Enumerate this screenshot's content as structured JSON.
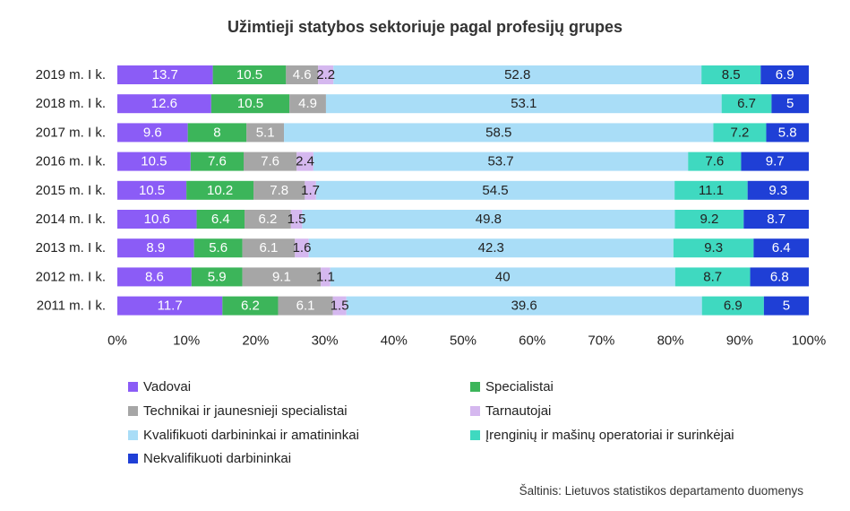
{
  "chart_data": {
    "type": "bar",
    "orientation": "horizontal",
    "stacked": "100%",
    "title": "Užimtieji statybos sektoriuje pagal profesijų grupes",
    "categories": [
      "2019 m. I k.",
      "2018 m. I k.",
      "2017 m. I k.",
      "2016 m. I k.",
      "2015 m. I k.",
      "2014 m. I k.",
      "2013 m. I k.",
      "2012 m. I k.",
      "2011 m. I k."
    ],
    "series": [
      {
        "name": "Vadovai",
        "color": "#8b5cf6",
        "label_color": "#ffffff",
        "values": [
          13.7,
          12.6,
          9.6,
          10.5,
          10.5,
          10.6,
          8.9,
          8.6,
          11.7
        ],
        "labels": [
          "13.7",
          "12.6",
          "9.6",
          "10.5",
          "10.5",
          "10.6",
          "8.9",
          "8.6",
          "11.7"
        ]
      },
      {
        "name": "Specialistai",
        "color": "#3cb55a",
        "label_color": "#ffffff",
        "values": [
          10.5,
          10.5,
          8,
          7.6,
          10.2,
          6.4,
          5.6,
          5.9,
          6.2
        ],
        "labels": [
          "10.5",
          "10.5",
          "8",
          "7.6",
          "10.2",
          "6.4",
          "5.6",
          "5.9",
          "6.2"
        ]
      },
      {
        "name": "Technikai ir jaunesnieji specialistai",
        "color": "#a6a6a6",
        "label_color": "#ffffff",
        "values": [
          4.6,
          4.9,
          5.1,
          7.6,
          7.8,
          6.2,
          6.1,
          9.1,
          6.1
        ],
        "labels": [
          "4.6",
          "4.9",
          "5.1",
          "7.6",
          "7.8",
          "6.2",
          "6.1",
          "9.1",
          "6.1"
        ]
      },
      {
        "name": "Tarnautojai",
        "color": "#d5b8ef",
        "label_color": "#222222",
        "values": [
          2.2,
          0,
          0,
          2.4,
          1.7,
          1.5,
          1.6,
          1.1,
          1.5
        ],
        "labels": [
          "2.2",
          "",
          "",
          "2.4",
          "1.7",
          "1.5",
          "1.6",
          "1.1",
          "1.5"
        ]
      },
      {
        "name": "Kvalifikuoti darbininkai ir amatininkai",
        "color": "#a9ddf7",
        "label_color": "#222222",
        "values": [
          52.8,
          53.1,
          58.5,
          53.7,
          54.5,
          49.8,
          42.3,
          40,
          39.6
        ],
        "labels": [
          "52.8",
          "53.1",
          "58.5",
          "53.7",
          "54.5",
          "49.8",
          "42.3",
          "40",
          "39.6"
        ]
      },
      {
        "name": "Įrenginių ir mašinų operatoriai ir surinkėjai",
        "color": "#3fd9c0",
        "label_color": "#222222",
        "values": [
          8.5,
          6.7,
          7.2,
          7.6,
          11.1,
          9.2,
          9.3,
          8.7,
          6.9
        ],
        "labels": [
          "8.5",
          "6.7",
          "7.2",
          "7.6",
          "11.1",
          "9.2",
          "9.3",
          "8.7",
          "6.9"
        ]
      },
      {
        "name": "Nekvalifikuoti darbininkai",
        "color": "#1f3fd6",
        "label_color": "#ffffff",
        "values": [
          6.9,
          5,
          5.8,
          9.7,
          9.3,
          8.7,
          6.4,
          6.8,
          5
        ],
        "labels": [
          "6.9",
          "5",
          "5.8",
          "9.7",
          "9.3",
          "8.7",
          "6.4",
          "6.8",
          "5"
        ]
      }
    ],
    "xlim": [
      0,
      100
    ],
    "x_ticks": [
      "0%",
      "10%",
      "20%",
      "30%",
      "40%",
      "50%",
      "60%",
      "70%",
      "80%",
      "90%",
      "100%"
    ],
    "grid": false,
    "legend_position": "bottom"
  },
  "legend": {
    "items": [
      {
        "label": "Vadovai",
        "color": "#8b5cf6"
      },
      {
        "label": "Specialistai",
        "color": "#3cb55a"
      },
      {
        "label": "Technikai ir jaunesnieji specialistai",
        "color": "#a6a6a6"
      },
      {
        "label": "Tarnautojai",
        "color": "#d5b8ef"
      },
      {
        "label": "Kvalifikuoti darbininkai ir amatininkai",
        "color": "#a9ddf7"
      },
      {
        "label": "Įrenginių ir mašinų operatoriai ir surinkėjai",
        "color": "#3fd9c0"
      },
      {
        "label": "Nekvalifikuoti darbininkai",
        "color": "#1f3fd6"
      }
    ]
  },
  "source": "Šaltinis: Lietuvos statistikos departamento duomenys"
}
